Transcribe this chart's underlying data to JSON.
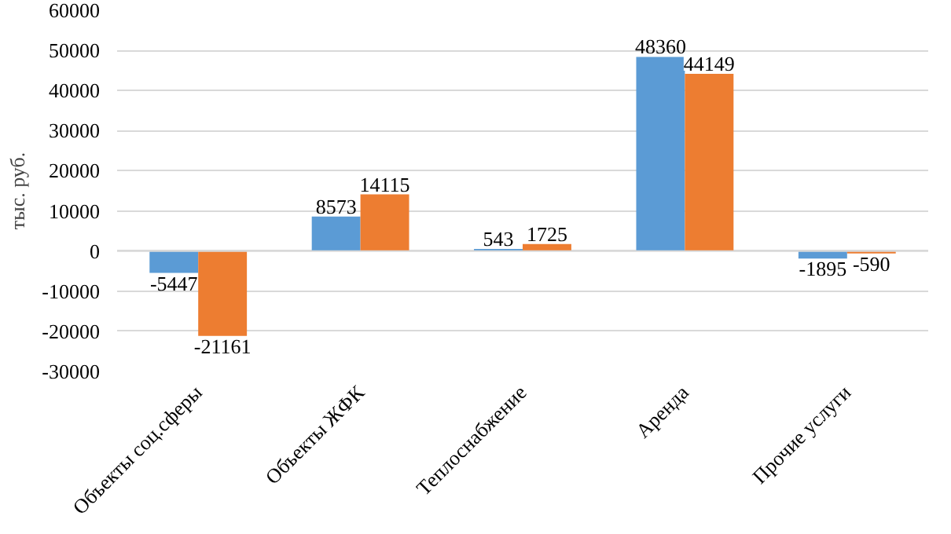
{
  "chart_data": {
    "type": "bar",
    "ylabel": "тыс. руб.",
    "categories": [
      "Объекты соц.сферы",
      "Объекты ЖФК",
      "Теплоснабжение",
      "Аренда",
      "Прочие услуги"
    ],
    "series": [
      {
        "color": "#5b9bd5",
        "values": [
          -5447,
          8573,
          543,
          48360,
          -1895
        ]
      },
      {
        "color": "#ed7d31",
        "values": [
          -21161,
          14115,
          1725,
          44149,
          -590
        ]
      }
    ],
    "ylim": [
      -30000,
      60000
    ],
    "yticks": [
      -30000,
      -20000,
      -10000,
      0,
      10000,
      20000,
      30000,
      40000,
      50000,
      60000
    ],
    "grid": "y",
    "data_labels": true
  }
}
